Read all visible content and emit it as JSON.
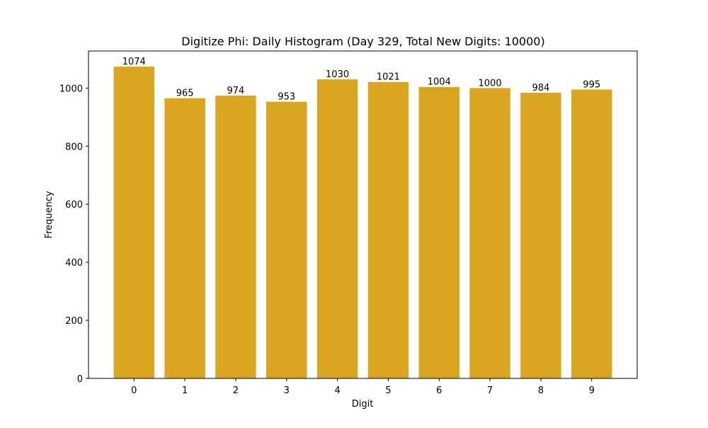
{
  "chart_data": {
    "type": "bar",
    "title": "Digitize Phi: Daily Histogram (Day 329, Total New Digits: 10000)",
    "xlabel": "Digit",
    "ylabel": "Frequency",
    "categories": [
      "0",
      "1",
      "2",
      "3",
      "4",
      "5",
      "6",
      "7",
      "8",
      "9"
    ],
    "values": [
      1074,
      965,
      974,
      953,
      1030,
      1021,
      1004,
      1000,
      984,
      995
    ],
    "data_labels": [
      "1074",
      "965",
      "974",
      "953",
      "1030",
      "1021",
      "1004",
      "1000",
      "984",
      "995"
    ],
    "yticks": [
      0,
      200,
      400,
      600,
      800,
      1000
    ],
    "ytick_labels": [
      "0",
      "200",
      "400",
      "600",
      "800",
      "1000"
    ],
    "ylim": [
      0,
      1127.7
    ],
    "grid": false,
    "legend": "none",
    "bar_color": "#DAA520"
  }
}
